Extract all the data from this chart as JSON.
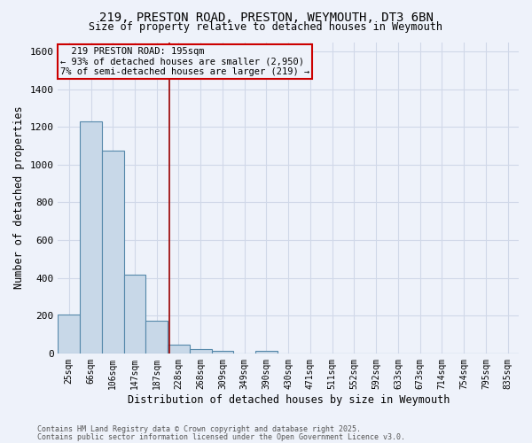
{
  "title_line1": "219, PRESTON ROAD, PRESTON, WEYMOUTH, DT3 6BN",
  "title_line2": "Size of property relative to detached houses in Weymouth",
  "xlabel": "Distribution of detached houses by size in Weymouth",
  "ylabel": "Number of detached properties",
  "categories": [
    "25sqm",
    "66sqm",
    "106sqm",
    "147sqm",
    "187sqm",
    "228sqm",
    "268sqm",
    "309sqm",
    "349sqm",
    "390sqm",
    "430sqm",
    "471sqm",
    "511sqm",
    "552sqm",
    "592sqm",
    "633sqm",
    "673sqm",
    "714sqm",
    "754sqm",
    "795sqm",
    "835sqm"
  ],
  "values": [
    205,
    1230,
    1075,
    415,
    175,
    47,
    25,
    12,
    0,
    12,
    0,
    0,
    0,
    0,
    0,
    0,
    0,
    0,
    0,
    0,
    0
  ],
  "bar_color": "#c8d8e8",
  "bar_edge_color": "#5588aa",
  "grid_color": "#d0d8e8",
  "background_color": "#eef2fa",
  "red_line_x": 4.57,
  "annotation_text": "  219 PRESTON ROAD: 195sqm  \n← 93% of detached houses are smaller (2,950)\n7% of semi-detached houses are larger (219) →",
  "ylim": [
    0,
    1650
  ],
  "yticks": [
    0,
    200,
    400,
    600,
    800,
    1000,
    1200,
    1400,
    1600
  ],
  "footer_line1": "Contains HM Land Registry data © Crown copyright and database right 2025.",
  "footer_line2": "Contains public sector information licensed under the Open Government Licence v3.0."
}
